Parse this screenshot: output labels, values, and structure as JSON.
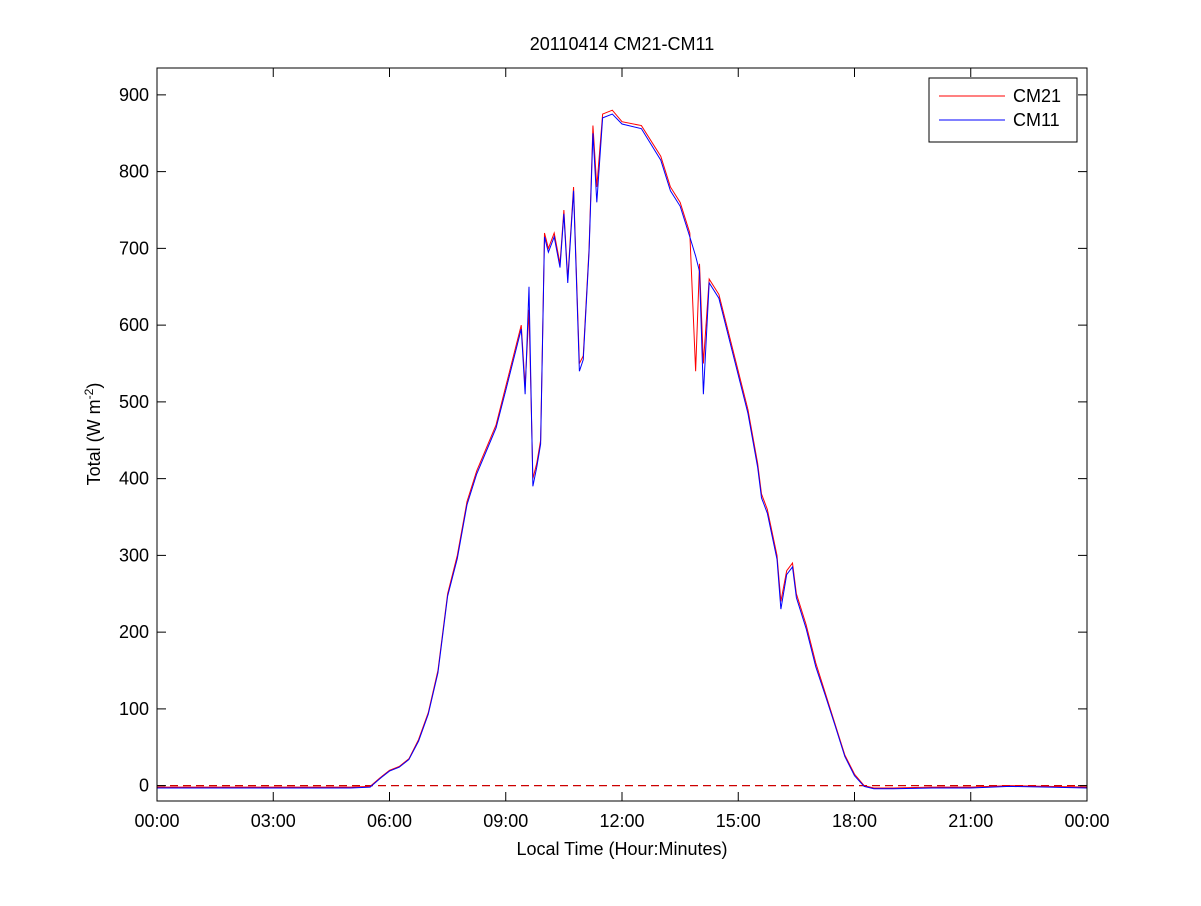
{
  "chart_data": {
    "type": "line",
    "title": "20110414 CM21-CM11",
    "xlabel": "Local Time (Hour:Minutes)",
    "ylabel": {
      "text": "Total (W m",
      "sup": "-2",
      "tail": ")"
    },
    "x": [
      0,
      1,
      2,
      3,
      4,
      5,
      5.5,
      5.75,
      6,
      6.25,
      6.5,
      6.75,
      7,
      7.25,
      7.4,
      7.5,
      7.75,
      8,
      8.25,
      8.5,
      8.75,
      9,
      9.25,
      9.4,
      9.5,
      9.6,
      9.7,
      9.8,
      9.9,
      10,
      10.1,
      10.25,
      10.4,
      10.5,
      10.6,
      10.75,
      10.9,
      11,
      11.15,
      11.25,
      11.35,
      11.5,
      11.75,
      12,
      12.5,
      13,
      13.25,
      13.5,
      13.75,
      13.9,
      14,
      14.1,
      14.25,
      14.5,
      14.75,
      15,
      15.25,
      15.5,
      15.6,
      15.75,
      16,
      16.1,
      16.25,
      16.4,
      16.5,
      16.75,
      17,
      17.25,
      17.5,
      17.75,
      18,
      18.25,
      18.5,
      19,
      20,
      21,
      22,
      23,
      24
    ],
    "series": [
      {
        "name": "CM21",
        "color": "#ff0000",
        "values": [
          -2,
          -2,
          -2,
          -2,
          -2,
          -2,
          -1,
          10,
          20,
          25,
          35,
          60,
          95,
          150,
          210,
          250,
          300,
          370,
          410,
          440,
          470,
          520,
          570,
          600,
          520,
          620,
          400,
          420,
          450,
          720,
          700,
          720,
          680,
          750,
          660,
          780,
          550,
          560,
          700,
          860,
          780,
          875,
          880,
          865,
          860,
          820,
          780,
          760,
          720,
          540,
          680,
          550,
          660,
          640,
          590,
          540,
          490,
          420,
          380,
          360,
          300,
          240,
          280,
          290,
          250,
          210,
          160,
          120,
          80,
          40,
          15,
          0,
          -3,
          -3,
          -2,
          -2,
          0,
          -1,
          -2
        ]
      },
      {
        "name": "CM11",
        "color": "#0000ff",
        "values": [
          -3,
          -3,
          -3,
          -3,
          -3,
          -3,
          -2,
          9,
          19,
          24,
          34,
          58,
          93,
          147,
          207,
          247,
          296,
          366,
          406,
          436,
          466,
          515,
          565,
          595,
          510,
          650,
          390,
          415,
          445,
          715,
          695,
          715,
          675,
          745,
          655,
          775,
          540,
          555,
          695,
          850,
          760,
          870,
          875,
          862,
          856,
          815,
          775,
          755,
          715,
          690,
          670,
          510,
          655,
          635,
          585,
          535,
          485,
          415,
          375,
          355,
          295,
          230,
          275,
          285,
          245,
          205,
          155,
          117,
          78,
          38,
          13,
          -1,
          -4,
          -4,
          -3,
          -3,
          -1,
          -2,
          -3
        ]
      }
    ],
    "reference_line": {
      "y": 0,
      "color": "#cc0000",
      "dashed": true
    },
    "xlim": [
      0,
      24
    ],
    "xticks": [
      {
        "value": 0,
        "label": "00:00"
      },
      {
        "value": 3,
        "label": "03:00"
      },
      {
        "value": 6,
        "label": "06:00"
      },
      {
        "value": 9,
        "label": "09:00"
      },
      {
        "value": 12,
        "label": "12:00"
      },
      {
        "value": 15,
        "label": "15:00"
      },
      {
        "value": 18,
        "label": "18:00"
      },
      {
        "value": 21,
        "label": "21:00"
      },
      {
        "value": 24,
        "label": "00:00"
      }
    ],
    "ylim": [
      -20,
      935
    ],
    "yticks": [
      0,
      100,
      200,
      300,
      400,
      500,
      600,
      700,
      800,
      900
    ],
    "grid": false,
    "legend": "top-right"
  }
}
